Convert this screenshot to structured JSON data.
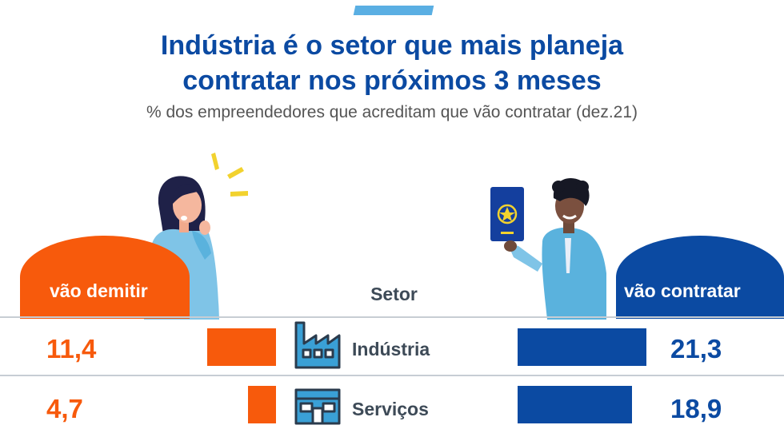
{
  "title_line1": "Indústria é o setor que mais planeja",
  "title_line2": "contratar nos próximos 3 meses",
  "subtitle": "% dos empreendedores que acreditam que vão contratar (dez.21)",
  "left_label": "vão demitir",
  "right_label": "vão contratar",
  "center_header": "Setor",
  "colors": {
    "demitir": "#f75a0c",
    "contratar": "#0b4aa2",
    "title": "#0b4aa2",
    "icon": "#3aa0d6"
  },
  "rows": [
    {
      "sector": "Indústria",
      "icon": "factory-icon",
      "demitir": "11,4",
      "contratar": "21,3"
    },
    {
      "sector": "Serviços",
      "icon": "storefront-icon",
      "demitir": "4,7",
      "contratar": "18,9"
    }
  ],
  "chart_data": {
    "type": "bar",
    "categories": [
      "Indústria",
      "Serviços"
    ],
    "series": [
      {
        "name": "vão demitir",
        "values": [
          11.4,
          4.7
        ]
      },
      {
        "name": "vão contratar",
        "values": [
          21.3,
          18.9
        ]
      }
    ]
  }
}
